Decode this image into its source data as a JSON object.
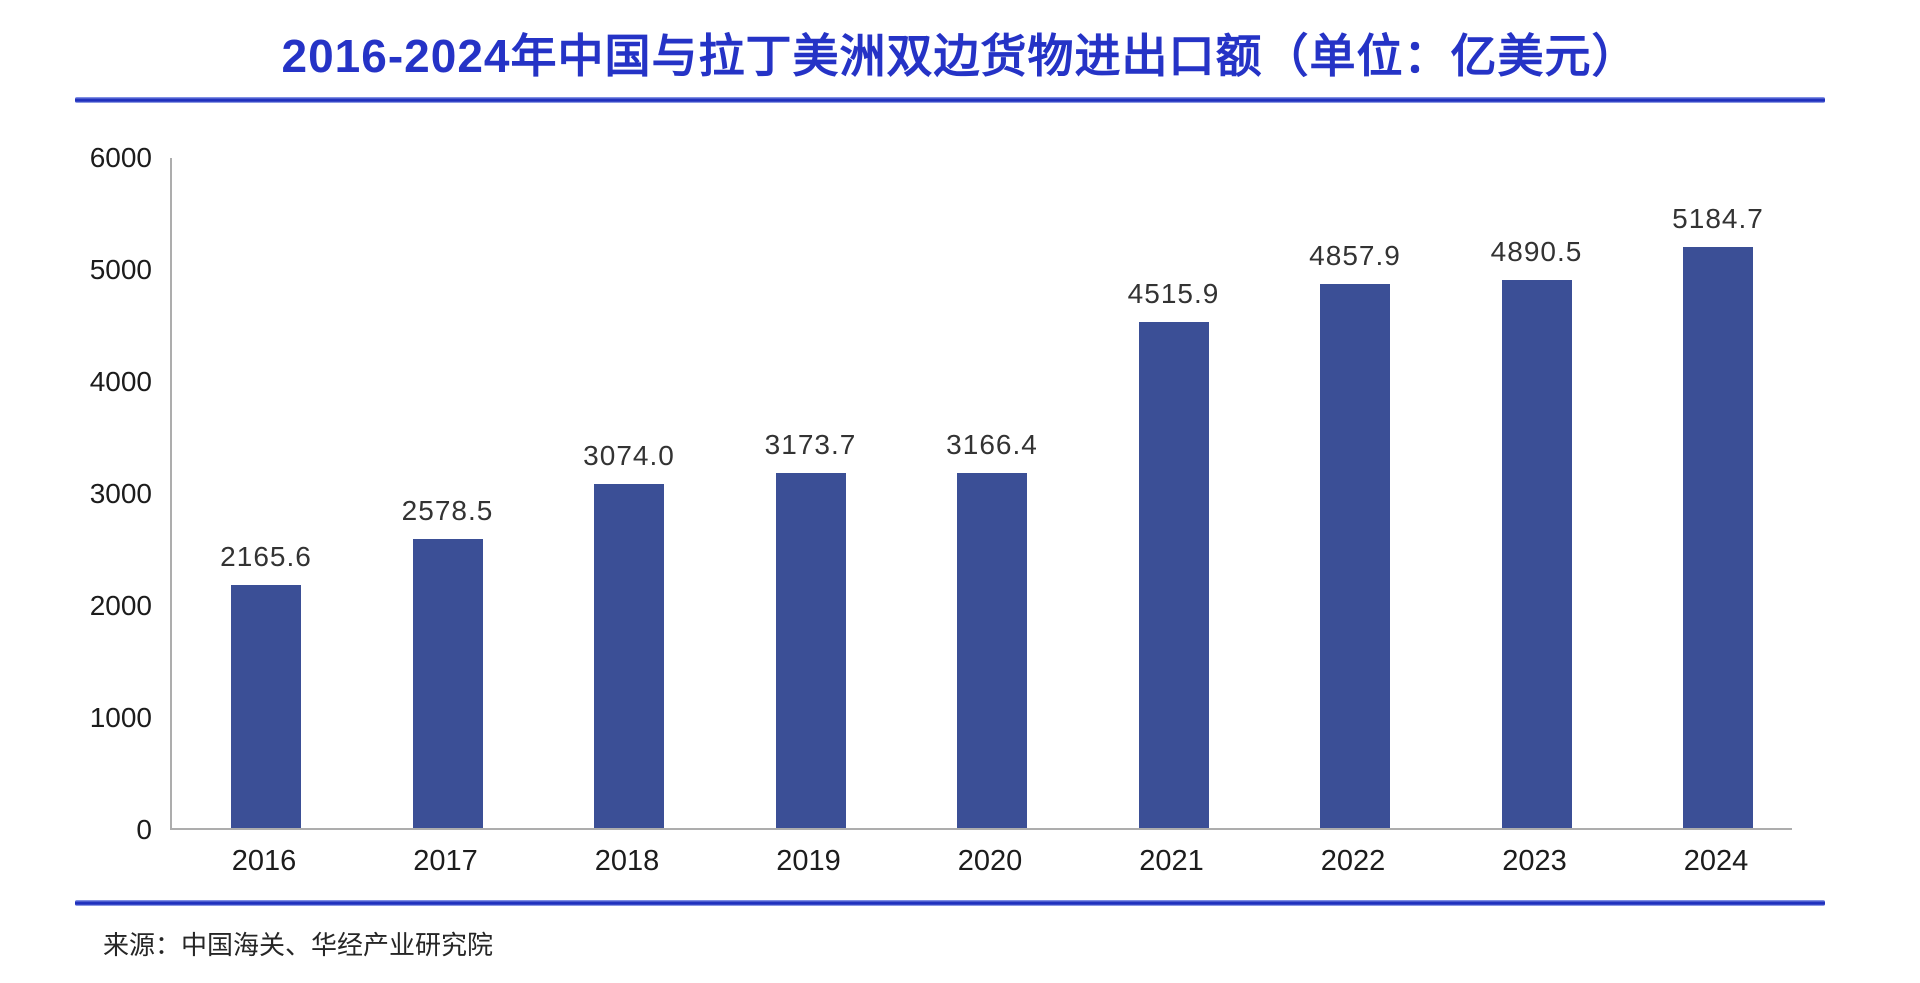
{
  "title": "2016-2024年中国与拉丁美洲双边货物进出口额（单位：亿美元）",
  "source": "来源：中国海关、华经产业研究院",
  "colors": {
    "title_blue": "#2533C6",
    "divider_blue": "#2B3BC6",
    "bar_blue": "#3B4F96",
    "axis_gray": "#ADADAD",
    "text_dark": "#303030"
  },
  "chart_data": {
    "type": "bar",
    "title": "2016-2024年中国与拉丁美洲双边货物进出口额（单位：亿美元）",
    "unit": "亿美元",
    "categories": [
      "2016",
      "2017",
      "2018",
      "2019",
      "2020",
      "2021",
      "2022",
      "2023",
      "2024"
    ],
    "values": [
      2165.6,
      2578.5,
      3074.0,
      3173.7,
      3166.4,
      4515.9,
      4857.9,
      4890.5,
      5184.7
    ],
    "labels": [
      "2165.6",
      "2578.5",
      "3074.0",
      "3173.7",
      "3166.4",
      "4515.9",
      "4857.9",
      "4890.5",
      "5184.7"
    ],
    "xlabel": "",
    "ylabel": "",
    "ylim": [
      0,
      6000
    ],
    "yticks": [
      0,
      1000,
      2000,
      3000,
      4000,
      5000,
      6000
    ],
    "grid": false,
    "legend": null,
    "source": "来源：中国海关、华经产业研究院"
  }
}
